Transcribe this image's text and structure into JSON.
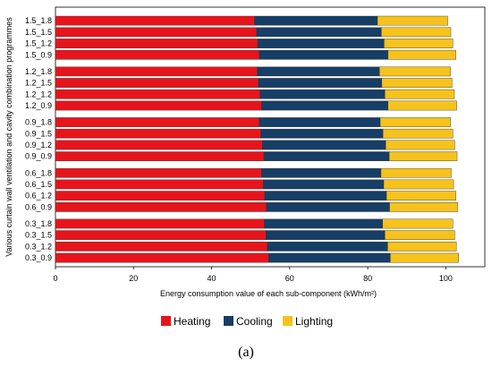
{
  "chart_data": {
    "type": "bar",
    "orientation": "horizontal",
    "stacked": true,
    "xlabel": "Energy consumption value of each sub-component (kWh/m²)",
    "ylabel": "Various curtain wall ventilation and cavity combination programmes",
    "xlim": [
      0,
      110
    ],
    "xticks": [
      0,
      20,
      40,
      60,
      80,
      100
    ],
    "grid": false,
    "legend_position": "bottom",
    "panel_label": "(a)",
    "groups": [
      {
        "categories": [
          "1.5_1.8",
          "1.5_1.5",
          "1.5_1.2",
          "1.5_0.9"
        ],
        "heating": [
          51.0,
          51.5,
          51.8,
          52.2
        ],
        "cooling": [
          31.5,
          32.0,
          32.4,
          33.0
        ],
        "lighting": [
          18.0,
          17.8,
          17.6,
          17.4
        ]
      },
      {
        "categories": [
          "1.2_1.8",
          "1.2_1.5",
          "1.2_1.2",
          "1.2_0.9"
        ],
        "heating": [
          51.7,
          52.0,
          52.4,
          52.8
        ],
        "cooling": [
          31.3,
          31.6,
          32.0,
          32.4
        ],
        "lighting": [
          18.2,
          18.0,
          17.8,
          17.6
        ]
      },
      {
        "categories": [
          "0.9_1.8",
          "0.9_1.5",
          "0.9_1.2",
          "0.9_0.9"
        ],
        "heating": [
          52.2,
          52.6,
          53.0,
          53.4
        ],
        "cooling": [
          31.0,
          31.3,
          31.6,
          32.1
        ],
        "lighting": [
          18.0,
          17.9,
          17.7,
          17.4
        ]
      },
      {
        "categories": [
          "0.6_1.8",
          "0.6_1.5",
          "0.6_1.2",
          "0.6_0.9"
        ],
        "heating": [
          52.8,
          53.2,
          53.6,
          54.0
        ],
        "cooling": [
          30.6,
          30.9,
          31.2,
          31.6
        ],
        "lighting": [
          18.0,
          17.9,
          17.8,
          17.5
        ]
      },
      {
        "categories": [
          "0.3_1.8",
          "0.3_1.5",
          "0.3_1.2",
          "0.3_0.9"
        ],
        "heating": [
          53.5,
          53.9,
          54.3,
          54.6
        ],
        "cooling": [
          30.3,
          30.5,
          30.8,
          31.2
        ],
        "lighting": [
          18.0,
          17.9,
          17.6,
          17.5
        ]
      }
    ],
    "series": [
      {
        "name": "Heating",
        "key": "heating",
        "color": "#e8141b"
      },
      {
        "name": "Cooling",
        "key": "cooling",
        "color": "#163e66"
      },
      {
        "name": "Lighting",
        "key": "lighting",
        "color": "#f6c21c"
      }
    ]
  }
}
